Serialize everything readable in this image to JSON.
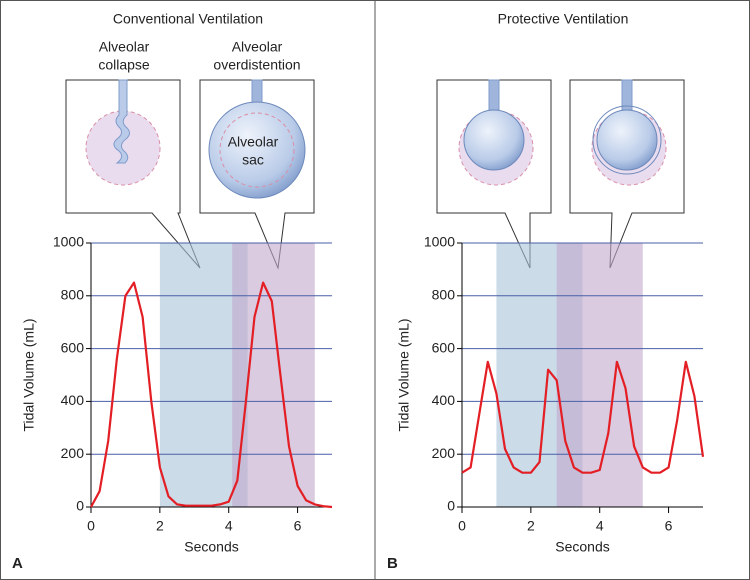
{
  "chart_data": [
    {
      "type": "line",
      "title": "Conventional Ventilation",
      "panel_label": "A",
      "annotations": [
        [
          "Alveolar",
          "collapse"
        ],
        [
          "Alveolar",
          "overdistention"
        ],
        [
          "Alveolar",
          "sac"
        ]
      ],
      "x_label": "Seconds",
      "y_label": "Tidal Volume (mL)",
      "x": [
        0,
        0.25,
        0.5,
        0.75,
        1,
        1.25,
        1.5,
        1.75,
        2,
        2.25,
        2.5,
        2.75,
        3,
        3.25,
        3.5,
        3.75,
        4,
        4.25,
        4.5,
        4.75,
        5,
        5.25,
        5.5,
        5.75,
        6,
        6.25,
        6.5,
        6.75,
        7
      ],
      "series": [
        {
          "color": "#e31e24",
          "values": [
            0,
            60,
            250,
            560,
            800,
            850,
            720,
            400,
            150,
            40,
            10,
            5,
            5,
            5,
            5,
            10,
            20,
            100,
            400,
            720,
            850,
            780,
            500,
            230,
            80,
            25,
            10,
            3,
            0
          ]
        }
      ],
      "regions": [
        {
          "start": 2,
          "end": 4.55,
          "color": "#a9c3d8"
        },
        {
          "start": 4.1,
          "end": 6.5,
          "color": "#c2a8cc"
        }
      ],
      "xlim": [
        0,
        7
      ],
      "ylim": [
        0,
        1000
      ],
      "xticks": [
        0,
        2,
        4,
        6
      ],
      "yticks": [
        0,
        200,
        400,
        600,
        800,
        1000
      ],
      "grid": true
    },
    {
      "type": "line",
      "title": "Protective Ventilation",
      "panel_label": "B",
      "x_label": "Seconds",
      "y_label": "Tidal Volume (mL)",
      "x": [
        0,
        0.25,
        0.5,
        0.75,
        1,
        1.25,
        1.5,
        1.75,
        2,
        2.25,
        2.5,
        2.75,
        3,
        3.25,
        3.5,
        3.75,
        4,
        4.25,
        4.5,
        4.75,
        5,
        5.25,
        5.5,
        5.75,
        6,
        6.25,
        6.5,
        6.75,
        7
      ],
      "series": [
        {
          "color": "#e31e24",
          "values": [
            130,
            150,
            350,
            550,
            430,
            220,
            150,
            130,
            130,
            170,
            520,
            480,
            250,
            150,
            130,
            130,
            140,
            280,
            550,
            450,
            230,
            150,
            130,
            130,
            150,
            330,
            550,
            420,
            190
          ]
        }
      ],
      "regions": [
        {
          "start": 1,
          "end": 3.5,
          "color": "#a9c3d8"
        },
        {
          "start": 2.75,
          "end": 5.25,
          "color": "#c2a8cc"
        }
      ],
      "xlim": [
        0,
        7
      ],
      "ylim": [
        0,
        1000
      ],
      "xticks": [
        0,
        2,
        4,
        6
      ],
      "yticks": [
        0,
        200,
        400,
        600,
        800,
        1000
      ],
      "grid": true
    }
  ]
}
